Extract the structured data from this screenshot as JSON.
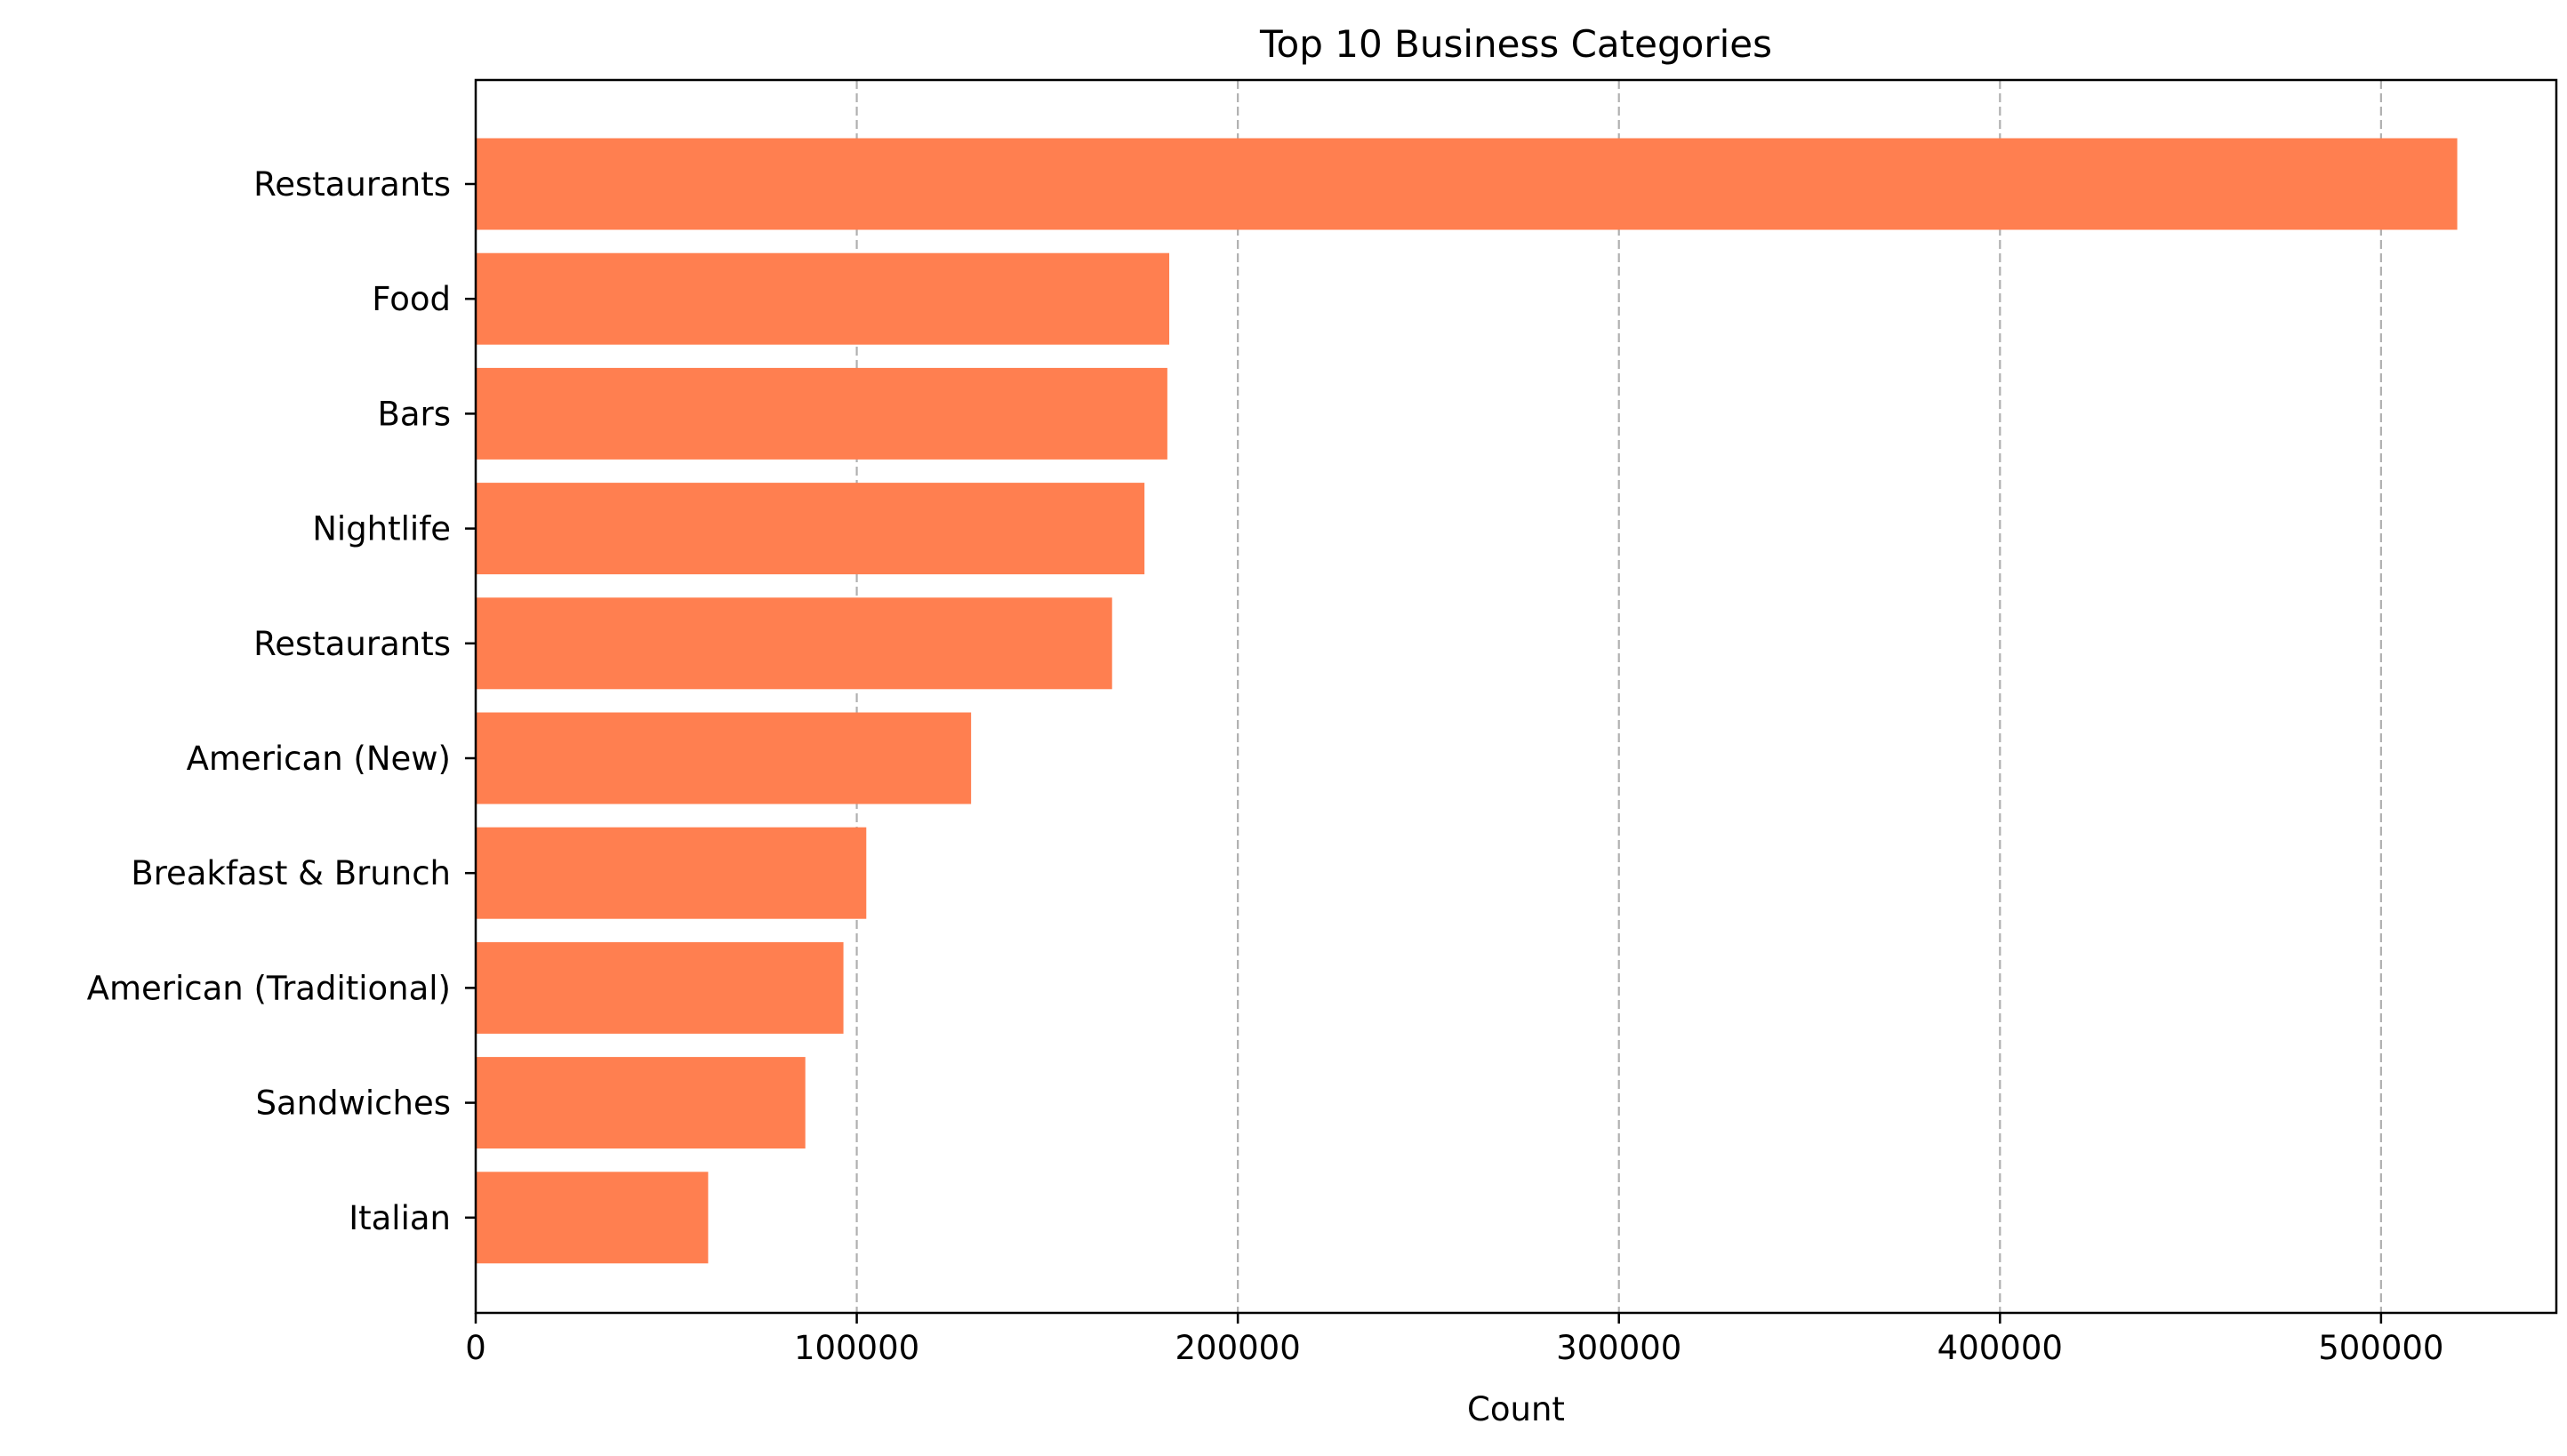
{
  "chart_data": {
    "type": "bar",
    "orientation": "horizontal",
    "title": "Top 10 Business Categories",
    "xlabel": "Count",
    "ylabel": "",
    "categories": [
      "Restaurants",
      "Food",
      "Bars",
      "Nightlife",
      "Restaurants",
      "American (New)",
      "Breakfast & Brunch",
      "American (Traditional)",
      "Sandwiches",
      "Italian"
    ],
    "values": [
      520000,
      182000,
      181500,
      175500,
      167000,
      130000,
      102500,
      96500,
      86500,
      61000
    ],
    "xlim": [
      0,
      546000
    ],
    "xticks": [
      0,
      100000,
      200000,
      300000,
      400000,
      500000
    ],
    "xtick_labels": [
      "0",
      "100000",
      "200000",
      "300000",
      "400000",
      "500000"
    ],
    "grid": "x, dashed",
    "bar_color": "#ff7f50",
    "grid_color": "#b0b0b0"
  }
}
